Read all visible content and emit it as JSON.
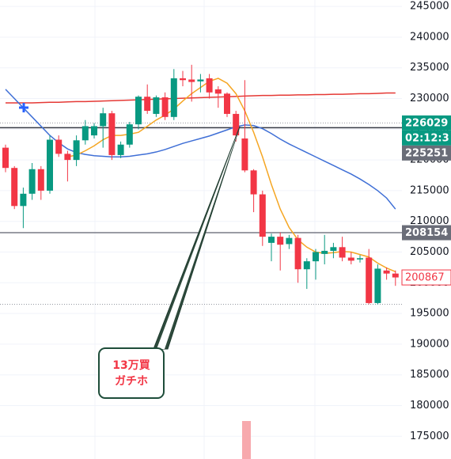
{
  "chart_data": {
    "type": "candlestick",
    "open": [
      222000,
      218700,
      212500,
      214500,
      218500,
      215000,
      223300,
      221000,
      220000,
      223200,
      224000,
      225500,
      227600,
      220800,
      222500,
      225800,
      230300,
      227500,
      230200,
      227000,
      233300,
      233100,
      232800,
      233300,
      231500,
      230800,
      227500,
      223500,
      218300,
      214400,
      206500,
      207500,
      206300,
      207300,
      202200,
      203500,
      204700,
      205200,
      205800,
      204100,
      203800,
      204100,
      196700,
      202000,
      201500
    ],
    "high": [
      222500,
      219000,
      215500,
      219500,
      219000,
      224000,
      224000,
      221500,
      224000,
      226500,
      226000,
      228500,
      228000,
      223000,
      226200,
      230500,
      232300,
      230500,
      231000,
      234800,
      234500,
      235500,
      234000,
      234000,
      232000,
      231000,
      228000,
      233000,
      218500,
      215000,
      208000,
      208200,
      207800,
      207800,
      204000,
      205500,
      207800,
      206500,
      207500,
      205000,
      204500,
      205500,
      203000,
      202500,
      202000
    ],
    "low": [
      218000,
      212000,
      208900,
      213500,
      213500,
      214500,
      220500,
      216500,
      219000,
      222500,
      223500,
      222000,
      220000,
      220300,
      222000,
      225000,
      227500,
      227000,
      226500,
      226500,
      232000,
      229500,
      231000,
      230000,
      228500,
      227000,
      223000,
      218000,
      211500,
      206000,
      203500,
      202000,
      205500,
      200000,
      199000,
      200500,
      203000,
      204000,
      203500,
      203000,
      203300,
      196500,
      196500,
      200500,
      199500
    ],
    "close": [
      218700,
      212500,
      214500,
      218500,
      215000,
      223300,
      221000,
      220000,
      223200,
      225500,
      225500,
      227600,
      220800,
      222500,
      225800,
      230300,
      228000,
      230200,
      227000,
      233300,
      233000,
      232700,
      233100,
      231000,
      230800,
      227500,
      224000,
      218300,
      214400,
      207500,
      207500,
      206200,
      207300,
      202200,
      203500,
      205000,
      205200,
      205800,
      204100,
      203600,
      204000,
      196700,
      202300,
      201500,
      200867
    ],
    "up_color": "#089981",
    "down_color": "#f23645",
    "series": [
      {
        "color": "#e53935",
        "values": [
          229300,
          229300,
          229300,
          229300,
          229350,
          229400,
          229400,
          229450,
          229500,
          229500,
          229550,
          229600,
          229650,
          229700,
          229750,
          229800,
          229850,
          229900,
          229950,
          230000,
          230050,
          230100,
          230150,
          230200,
          230250,
          230300,
          230350,
          230400,
          230450,
          230500,
          230500,
          230550,
          230550,
          230600,
          230600,
          230650,
          230650,
          230700,
          230700,
          230750,
          230800,
          230800,
          230850,
          230900,
          230900
        ]
      },
      {
        "color": "#3f6fd6",
        "values": [
          231500,
          230000,
          228500,
          227000,
          225500,
          224000,
          222800,
          221800,
          221200,
          220900,
          220700,
          220600,
          220500,
          220500,
          220600,
          220800,
          221000,
          221300,
          221700,
          222200,
          222700,
          223100,
          223500,
          223900,
          224400,
          224900,
          225400,
          225700,
          225600,
          225100,
          224300,
          223400,
          222600,
          221900,
          221200,
          220500,
          219800,
          219100,
          218400,
          217700,
          216900,
          216000,
          215000,
          213800,
          212000
        ]
      },
      {
        "color": "#f5a623",
        "values": [
          null,
          null,
          null,
          null,
          null,
          null,
          null,
          220500,
          220800,
          221500,
          222300,
          223300,
          224000,
          224000,
          224200,
          224500,
          225500,
          226500,
          227300,
          228300,
          229600,
          230800,
          231800,
          232800,
          233300,
          232500,
          230800,
          228000,
          224500,
          220500,
          216000,
          212000,
          209000,
          207000,
          205800,
          205000,
          204800,
          204900,
          205100,
          205000,
          204600,
          204200,
          203200,
          202400,
          201800
        ]
      }
    ],
    "ylim": [
      171300,
      246050
    ],
    "yticks": [
      245000,
      240000,
      235000,
      230000,
      225000,
      220000,
      215000,
      210000,
      205000,
      200000,
      195000,
      190000,
      185000,
      180000,
      175000
    ],
    "grid": true,
    "hlines": [
      {
        "value": 225251,
        "color": "#363a45"
      },
      {
        "value": 208154,
        "color": "#787b86"
      }
    ],
    "dotted_lines": [
      {
        "value": 226029,
        "color": "#9598a1"
      },
      {
        "value": 196500,
        "color": "#9598a1"
      }
    ],
    "price_labels": [
      {
        "value": 226029,
        "color": "#089981"
      },
      {
        "value": 225251,
        "color": "#6a6d78"
      },
      {
        "value": 208154,
        "color": "#6a6d78"
      },
      {
        "value": 200867,
        "color": "#f23645"
      }
    ],
    "countdown": "02:12:3",
    "annotation": [
      "13万買",
      "ガチホ"
    ]
  }
}
